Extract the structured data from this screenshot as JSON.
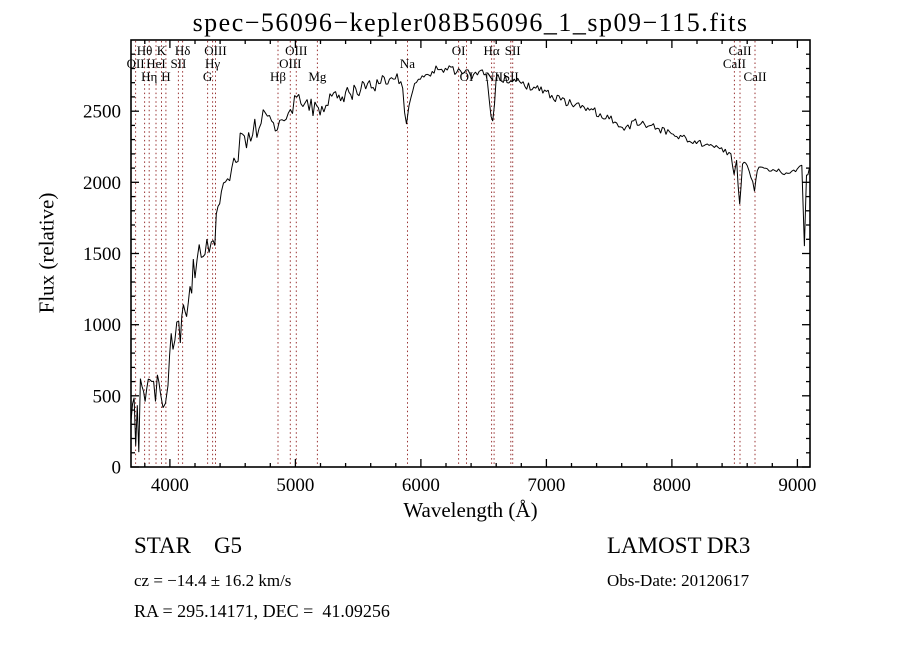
{
  "title": "spec−56096−kepler08B56096_1_sp09−115.fits",
  "annotations": {
    "class": "STAR    G5",
    "survey": "LAMOST DR3",
    "cz": "cz = −14.4 ± 16.2 km/s",
    "obs_date": "Obs-Date: 20120617",
    "radec": "RA = 295.14171, DEC =  41.09256"
  },
  "colors": {
    "spectrum": "#000000",
    "axis": "#000000",
    "marker": "#993333",
    "background": "#ffffff"
  },
  "chart_data": {
    "type": "line",
    "title": "spec−56096−kepler08B56096_1_sp09−115.fits",
    "xlabel": "Wavelength (Å)",
    "ylabel": "Flux (relative)",
    "xlim": [
      3690,
      9100
    ],
    "ylim": [
      0,
      3000
    ],
    "x_ticks": [
      4000,
      5000,
      6000,
      7000,
      8000,
      9000
    ],
    "y_ticks": [
      0,
      500,
      1000,
      1500,
      2000,
      2500
    ],
    "x_minor_step": 200,
    "y_minor_step": 100,
    "grid": false,
    "legend": "none",
    "series": [
      {
        "name": "spectrum",
        "note": "anchor points as [wavelength_A, flux_relative, noise_amplitude]; rendered line interpolates anchors with jitter to match observed noisy spectrum",
        "anchors": [
          [
            3690,
            300,
            260
          ],
          [
            3715,
            280,
            260
          ],
          [
            3740,
            240,
            240
          ],
          [
            3765,
            420,
            220
          ],
          [
            3790,
            430,
            200
          ],
          [
            3815,
            500,
            180
          ],
          [
            3840,
            540,
            170
          ],
          [
            3870,
            560,
            160
          ],
          [
            3900,
            540,
            160
          ],
          [
            3925,
            470,
            150
          ],
          [
            3945,
            520,
            150
          ],
          [
            3965,
            520,
            140
          ],
          [
            3985,
            650,
            150
          ],
          [
            4010,
            850,
            160
          ],
          [
            4040,
            950,
            150
          ],
          [
            4070,
            1000,
            140
          ],
          [
            4095,
            1010,
            130
          ],
          [
            4120,
            1100,
            130
          ],
          [
            4160,
            1280,
            120
          ],
          [
            4200,
            1420,
            120
          ],
          [
            4250,
            1530,
            115
          ],
          [
            4295,
            1530,
            110
          ],
          [
            4330,
            1580,
            110
          ],
          [
            4345,
            1560,
            105
          ],
          [
            4370,
            1700,
            105
          ],
          [
            4410,
            1900,
            105
          ],
          [
            4460,
            2060,
            100
          ],
          [
            4510,
            2170,
            100
          ],
          [
            4560,
            2260,
            100
          ],
          [
            4610,
            2320,
            95
          ],
          [
            4660,
            2370,
            95
          ],
          [
            4710,
            2410,
            95
          ],
          [
            4760,
            2440,
            95
          ],
          [
            4810,
            2470,
            90
          ],
          [
            4855,
            2390,
            90
          ],
          [
            4875,
            2440,
            90
          ],
          [
            4910,
            2490,
            90
          ],
          [
            4960,
            2520,
            85
          ],
          [
            5010,
            2530,
            85
          ],
          [
            5060,
            2550,
            80
          ],
          [
            5110,
            2560,
            80
          ],
          [
            5170,
            2470,
            75
          ],
          [
            5210,
            2540,
            75
          ],
          [
            5260,
            2570,
            70
          ],
          [
            5320,
            2590,
            70
          ],
          [
            5400,
            2620,
            65
          ],
          [
            5480,
            2650,
            60
          ],
          [
            5560,
            2680,
            60
          ],
          [
            5650,
            2700,
            55
          ],
          [
            5750,
            2720,
            55
          ],
          [
            5840,
            2730,
            50
          ],
          [
            5885,
            2430,
            40
          ],
          [
            5905,
            2560,
            45
          ],
          [
            5950,
            2720,
            50
          ],
          [
            6010,
            2760,
            50
          ],
          [
            6090,
            2780,
            45
          ],
          [
            6180,
            2790,
            45
          ],
          [
            6270,
            2770,
            45
          ],
          [
            6360,
            2760,
            40
          ],
          [
            6450,
            2760,
            40
          ],
          [
            6530,
            2740,
            40
          ],
          [
            6558,
            2440,
            35
          ],
          [
            6572,
            2430,
            35
          ],
          [
            6600,
            2720,
            40
          ],
          [
            6700,
            2720,
            38
          ],
          [
            6800,
            2700,
            36
          ],
          [
            6900,
            2660,
            35
          ],
          [
            7000,
            2625,
            35
          ],
          [
            7100,
            2585,
            32
          ],
          [
            7200,
            2550,
            30
          ],
          [
            7300,
            2520,
            30
          ],
          [
            7400,
            2490,
            30
          ],
          [
            7500,
            2460,
            30
          ],
          [
            7590,
            2400,
            28
          ],
          [
            7650,
            2380,
            28
          ],
          [
            7710,
            2430,
            28
          ],
          [
            7810,
            2400,
            26
          ],
          [
            7910,
            2370,
            26
          ],
          [
            8010,
            2340,
            25
          ],
          [
            8110,
            2310,
            25
          ],
          [
            8210,
            2280,
            24
          ],
          [
            8310,
            2255,
            24
          ],
          [
            8410,
            2230,
            24
          ],
          [
            8470,
            2190,
            22
          ],
          [
            8495,
            2040,
            18
          ],
          [
            8515,
            2140,
            18
          ],
          [
            8540,
            1840,
            15
          ],
          [
            8562,
            2130,
            18
          ],
          [
            8600,
            2120,
            18
          ],
          [
            8658,
            1950,
            15
          ],
          [
            8680,
            2090,
            18
          ],
          [
            8760,
            2100,
            18
          ],
          [
            8850,
            2080,
            20
          ],
          [
            8940,
            2060,
            22
          ],
          [
            9000,
            2080,
            24
          ],
          [
            9035,
            2110,
            26
          ],
          [
            9055,
            1560,
            10
          ],
          [
            9072,
            2040,
            18
          ],
          [
            9095,
            2100,
            16
          ]
        ]
      }
    ],
    "spectral_lines": [
      {
        "label": "OII",
        "wavelength": 3727,
        "row": 2
      },
      {
        "label": "Hθ",
        "wavelength": 3798,
        "row": 1
      },
      {
        "label": "Hη",
        "wavelength": 3835,
        "row": 3
      },
      {
        "label": "HeI",
        "wavelength": 3889,
        "row": 2
      },
      {
        "label": "K",
        "wavelength": 3933,
        "row": 1
      },
      {
        "label": "H",
        "wavelength": 3968,
        "row": 3
      },
      {
        "label": "SII",
        "wavelength": 4068,
        "row": 2
      },
      {
        "label": "Hδ",
        "wavelength": 4101,
        "row": 1
      },
      {
        "label": "G",
        "wavelength": 4300,
        "row": 3
      },
      {
        "label": "Hγ",
        "wavelength": 4340,
        "row": 2
      },
      {
        "label": "OIII",
        "wavelength": 4363,
        "row": 1
      },
      {
        "label": "Hβ",
        "wavelength": 4861,
        "row": 3
      },
      {
        "label": "OIII",
        "wavelength": 4959,
        "row": 2
      },
      {
        "label": "OIII",
        "wavelength": 5007,
        "row": 1
      },
      {
        "label": "Mg",
        "wavelength": 5175,
        "row": 3
      },
      {
        "label": "Na",
        "wavelength": 5893,
        "row": 2
      },
      {
        "label": "OI",
        "wavelength": 6300,
        "row": 1
      },
      {
        "label": "OI",
        "wavelength": 6363,
        "row": 3
      },
      {
        "label": "Hα",
        "wavelength": 6563,
        "row": 1
      },
      {
        "label": "NII",
        "wavelength": 6583,
        "row": 3
      },
      {
        "label": "SII",
        "wavelength": 6716,
        "row": 3
      },
      {
        "label": "SII",
        "wavelength": 6731,
        "row": 1
      },
      {
        "label": "CaII",
        "wavelength": 8498,
        "row": 2
      },
      {
        "label": "CaII",
        "wavelength": 8542,
        "row": 1
      },
      {
        "label": "CaII",
        "wavelength": 8662,
        "row": 3
      }
    ]
  }
}
